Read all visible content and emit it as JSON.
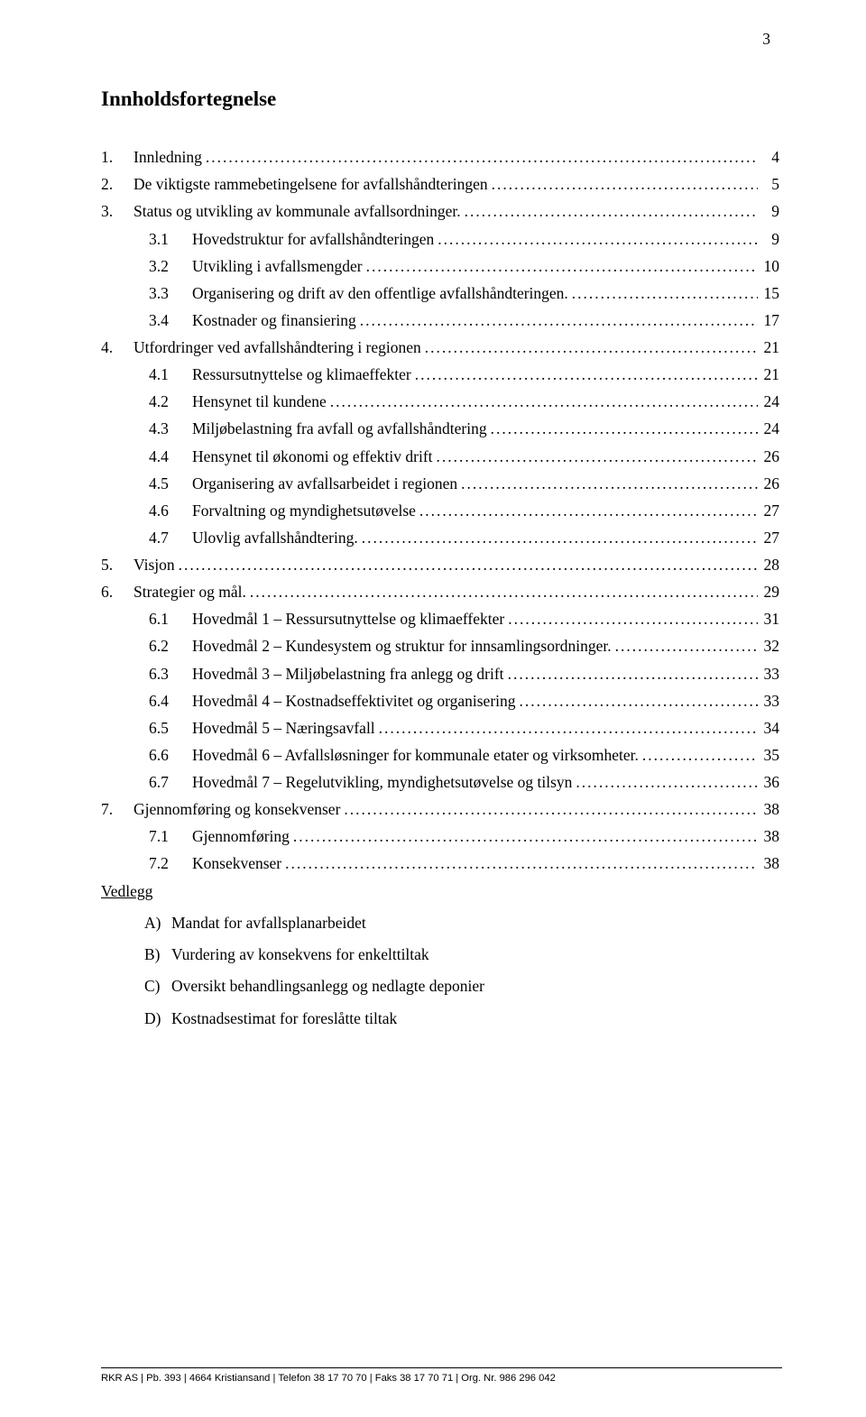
{
  "page_number": "3",
  "title": "Innholdsfortegnelse",
  "toc": [
    {
      "num": "1.",
      "text": "Innledning",
      "page": "4",
      "level": 1
    },
    {
      "num": "2.",
      "text": "De viktigste rammebetingelsene for avfallshåndteringen",
      "page": "5",
      "level": 1
    },
    {
      "num": "3.",
      "text": "Status og utvikling av kommunale avfallsordninger.",
      "page": "9",
      "level": 1
    },
    {
      "num": "3.1",
      "text": "Hovedstruktur for avfallshåndteringen",
      "page": "9",
      "level": 2
    },
    {
      "num": "3.2",
      "text": "Utvikling i avfallsmengder",
      "page": "10",
      "level": 2
    },
    {
      "num": "3.3",
      "text": "Organisering og drift av den offentlige avfallshåndteringen.",
      "page": "15",
      "level": 2
    },
    {
      "num": "3.4",
      "text": "Kostnader og finansiering",
      "page": "17",
      "level": 2
    },
    {
      "num": "4.",
      "text": "Utfordringer ved avfallshåndtering i regionen",
      "page": "21",
      "level": 1
    },
    {
      "num": "4.1",
      "text": "Ressursutnyttelse og klimaeffekter",
      "page": "21",
      "level": 2
    },
    {
      "num": "4.2",
      "text": "Hensynet til kundene",
      "page": "24",
      "level": 2
    },
    {
      "num": "4.3",
      "text": "Miljøbelastning fra avfall og avfallshåndtering",
      "page": "24",
      "level": 2
    },
    {
      "num": "4.4",
      "text": "Hensynet til økonomi og effektiv drift",
      "page": "26",
      "level": 2
    },
    {
      "num": "4.5",
      "text": "Organisering av avfallsarbeidet i regionen",
      "page": "26",
      "level": 2
    },
    {
      "num": "4.6",
      "text": "Forvaltning og myndighetsutøvelse",
      "page": "27",
      "level": 2
    },
    {
      "num": "4.7",
      "text": "Ulovlig avfallshåndtering.",
      "page": "27",
      "level": 2
    },
    {
      "num": "5.",
      "text": "Visjon",
      "page": "28",
      "level": 1
    },
    {
      "num": "6.",
      "text": "Strategier og mål.",
      "page": "29",
      "level": 1
    },
    {
      "num": "6.1",
      "text": "Hovedmål 1 – Ressursutnyttelse og klimaeffekter",
      "page": "31",
      "level": 2
    },
    {
      "num": "6.2",
      "text": "Hovedmål 2 – Kundesystem og struktur for innsamlingsordninger.",
      "page": "32",
      "level": 2
    },
    {
      "num": "6.3",
      "text": "Hovedmål 3 – Miljøbelastning fra anlegg og drift",
      "page": "33",
      "level": 2
    },
    {
      "num": "6.4",
      "text": "Hovedmål 4 – Kostnadseffektivitet og organisering",
      "page": "33",
      "level": 2
    },
    {
      "num": "6.5",
      "text": "Hovedmål 5 – Næringsavfall",
      "page": "34",
      "level": 2
    },
    {
      "num": "6.6",
      "text": "Hovedmål 6 – Avfallsløsninger for kommunale etater og virksomheter.",
      "page": "35",
      "level": 2
    },
    {
      "num": "6.7",
      "text": "Hovedmål 7 – Regelutvikling, myndighetsutøvelse og tilsyn",
      "page": "36",
      "level": 2
    },
    {
      "num": "7.",
      "text": "Gjennomføring og konsekvenser",
      "page": "38",
      "level": 1
    },
    {
      "num": "7.1",
      "text": "Gjennomføring",
      "page": "38",
      "level": 2
    },
    {
      "num": "7.2",
      "text": "Konsekvenser",
      "page": "38",
      "level": 2
    }
  ],
  "vedlegg_heading": "Vedlegg",
  "vedlegg": [
    {
      "letter": "A)",
      "text": "Mandat for avfallsplanarbeidet"
    },
    {
      "letter": "B)",
      "text": "Vurdering av konsekvens for enkelttiltak"
    },
    {
      "letter": "C)",
      "text": "Oversikt behandlingsanlegg og nedlagte deponier"
    },
    {
      "letter": "D)",
      "text": "Kostnadsestimat for foreslåtte tiltak"
    }
  ],
  "footer": "RKR AS | Pb. 393 | 4664 Kristiansand | Telefon 38 17 70 70 | Faks 38 17 70 71 | Org. Nr. 986 296 042"
}
